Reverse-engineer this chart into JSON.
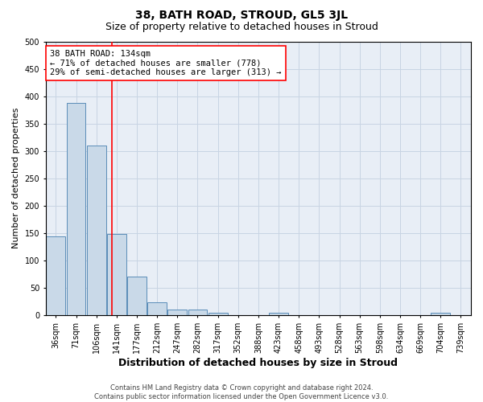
{
  "title": "38, BATH ROAD, STROUD, GL5 3JL",
  "subtitle": "Size of property relative to detached houses in Stroud",
  "xlabel": "Distribution of detached houses by size in Stroud",
  "ylabel": "Number of detached properties",
  "footer_line1": "Contains HM Land Registry data © Crown copyright and database right 2024.",
  "footer_line2": "Contains public sector information licensed under the Open Government Licence v3.0.",
  "annotation_title": "38 BATH ROAD: 134sqm",
  "annotation_line2": "← 71% of detached houses are smaller (778)",
  "annotation_line3": "29% of semi-detached houses are larger (313) →",
  "bar_labels": [
    "36sqm",
    "71sqm",
    "106sqm",
    "141sqm",
    "177sqm",
    "212sqm",
    "247sqm",
    "282sqm",
    "317sqm",
    "352sqm",
    "388sqm",
    "423sqm",
    "458sqm",
    "493sqm",
    "528sqm",
    "563sqm",
    "598sqm",
    "634sqm",
    "669sqm",
    "704sqm",
    "739sqm"
  ],
  "bar_values": [
    144,
    387,
    310,
    148,
    71,
    23,
    10,
    10,
    4,
    0,
    0,
    4,
    0,
    0,
    0,
    0,
    0,
    0,
    0,
    4,
    0
  ],
  "bar_color": "#c9d9e8",
  "bar_edge_color": "#5b8db8",
  "grid_color": "#c8d4e3",
  "bg_color": "#e8eef6",
  "red_line_x": 2.78,
  "ylim": [
    0,
    500
  ],
  "yticks": [
    0,
    50,
    100,
    150,
    200,
    250,
    300,
    350,
    400,
    450,
    500
  ],
  "title_fontsize": 10,
  "subtitle_fontsize": 9,
  "xlabel_fontsize": 9,
  "ylabel_fontsize": 8,
  "tick_fontsize": 7,
  "annotation_fontsize": 7.5,
  "footer_fontsize": 6
}
